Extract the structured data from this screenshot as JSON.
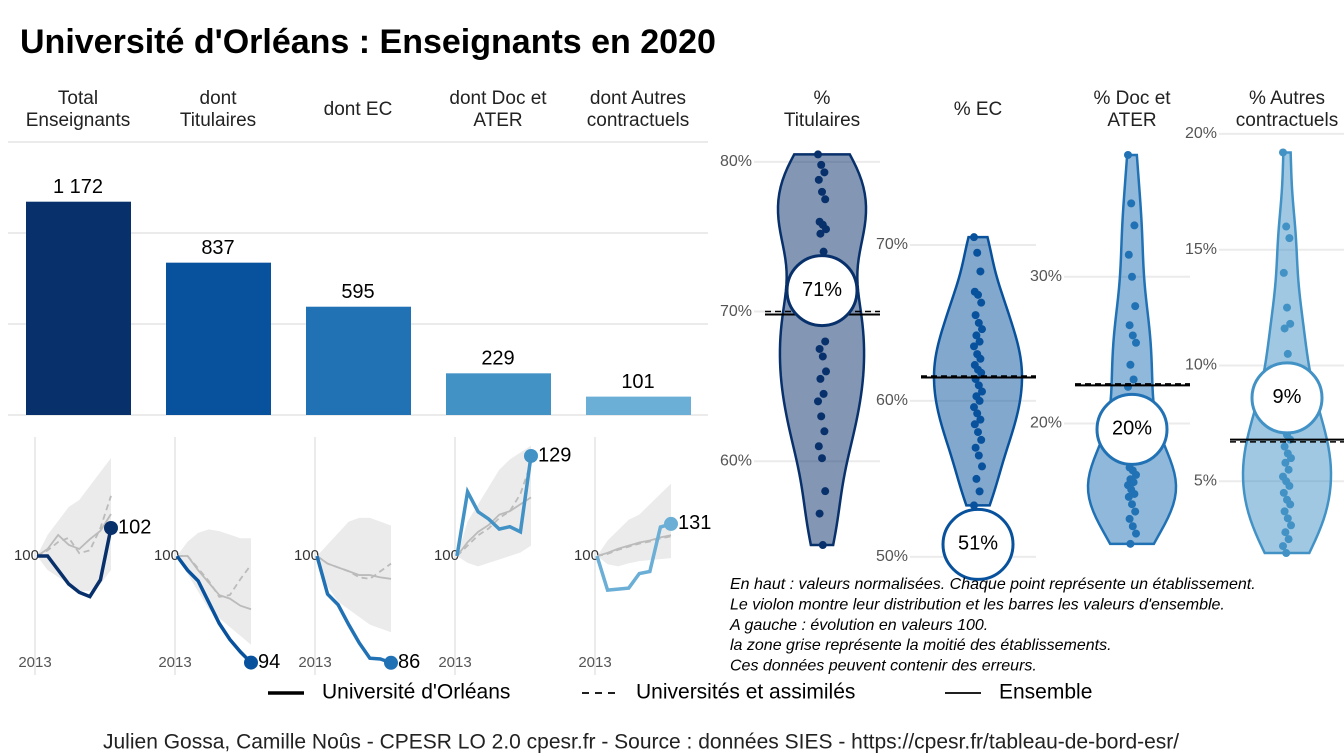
{
  "title": "Université d'Orléans  :  Enseignants en 2020",
  "chart_data": [
    {
      "type": "bar",
      "categories": [
        "Total\nEnseignants",
        "dont\nTitulaires",
        "dont EC",
        "dont Doc et\nATER",
        "dont Autres\ncontractuels"
      ],
      "values": [
        1172,
        837,
        595,
        229,
        101
      ],
      "value_labels": [
        "1 172",
        "837",
        "595",
        "229",
        "101"
      ],
      "colors": [
        "#08306b",
        "#08519c",
        "#2171b5",
        "#4292c6",
        "#6baed6"
      ],
      "ylim": [
        0,
        1500
      ],
      "yticks": [
        0,
        500,
        1000,
        1500
      ],
      "grid": true
    },
    {
      "type": "line",
      "categories": [
        "2013",
        null,
        null,
        null,
        null,
        null,
        null,
        null
      ],
      "ylim": [
        91.5,
        108.5
      ],
      "yticks": [
        100
      ],
      "series": [
        {
          "color": "#08306b",
          "values": [
            100,
            100,
            99,
            98,
            97.4,
            97.1,
            98.3,
            102
          ]
        },
        {
          "color": "#bbbbbb",
          "dash": true,
          "values": [
            100,
            100.4,
            101,
            101.3,
            100.2,
            100.4,
            102,
            104.3
          ]
        },
        {
          "color": "#bbbbbb",
          "values": [
            100,
            100.5,
            101.5,
            100.8,
            100.5,
            101.2,
            101.8,
            103
          ]
        }
      ],
      "band": {
        "color": "#ebebeb",
        "low": [
          100,
          99,
          98.5,
          98,
          97.5,
          97.5,
          98,
          99
        ],
        "high": [
          100,
          101.5,
          102.5,
          103.5,
          104,
          105,
          106,
          107
        ]
      }
    },
    {
      "type": "line",
      "categories": [
        "2013",
        null,
        null,
        null,
        null,
        null,
        null,
        null
      ],
      "ylim": [
        93.3,
        106.7
      ],
      "yticks": [
        100
      ],
      "series": [
        {
          "color": "#08519c",
          "values": [
            100,
            99.2,
            98.6,
            97.4,
            96.2,
            95.3,
            94.6,
            94
          ]
        },
        {
          "color": "#bbbbbb",
          "dash": true,
          "values": [
            100,
            100,
            99.3,
            98.6,
            97.7,
            97.8,
            98.7,
            99.5
          ]
        },
        {
          "color": "#bbbbbb",
          "values": [
            100,
            100,
            99.2,
            98.5,
            97.8,
            97.6,
            97.2,
            97
          ]
        }
      ],
      "band": {
        "color": "#ebebeb",
        "low": [
          100,
          99,
          98,
          97,
          96.5,
          96,
          95.5,
          95
        ],
        "high": [
          100,
          100.8,
          101.3,
          101.5,
          101.4,
          101.2,
          101,
          101
        ]
      }
    },
    {
      "type": "line",
      "categories": [
        "2013",
        null,
        null,
        null,
        null,
        null,
        null,
        null
      ],
      "ylim": [
        84.4,
        115.6
      ],
      "yticks": [
        100
      ],
      "series": [
        {
          "color": "#2171b5",
          "values": [
            100,
            95,
            93.6,
            91,
            88.6,
            86.6,
            86.5,
            86
          ]
        },
        {
          "color": "#bbbbbb",
          "dash": true,
          "values": [
            100,
            99,
            98.5,
            98,
            97.2,
            97,
            98,
            99
          ]
        },
        {
          "color": "#bbbbbb",
          "values": [
            100,
            99,
            98.5,
            98,
            97.5,
            97.5,
            97.2,
            97
          ]
        }
      ],
      "band": {
        "color": "#ebebeb",
        "low": [
          100,
          96,
          94,
          93,
          92,
          91,
          90.5,
          90
        ],
        "high": [
          100,
          101.5,
          103,
          104.5,
          105,
          105,
          104.5,
          104
        ]
      }
    },
    {
      "type": "line",
      "categories": [
        "2013",
        null,
        null,
        null,
        null,
        null,
        null,
        null
      ],
      "ylim": [
        65.5,
        134.5
      ],
      "yticks": [
        100
      ],
      "series": [
        {
          "color": "#4292c6",
          "values": [
            100,
            118.6,
            112.8,
            110.7,
            107.8,
            108.5,
            107,
            129
          ]
        },
        {
          "color": "#bbbbbb",
          "dash": true,
          "values": [
            100,
            103,
            106,
            108,
            111,
            113,
            118,
            127
          ]
        },
        {
          "color": "#bbbbbb",
          "values": [
            100,
            104,
            107,
            109,
            112,
            113,
            115,
            117
          ]
        }
      ],
      "band": {
        "color": "#ebebeb",
        "low": [
          100,
          98,
          97,
          98,
          99,
          100,
          101,
          103
        ],
        "high": [
          100,
          110,
          115,
          120,
          125,
          128,
          130,
          132
        ]
      }
    },
    {
      "type": "line",
      "categories": [
        "2013",
        null,
        null,
        null,
        null,
        null,
        null,
        null
      ],
      "ylim": [
        -15,
        215
      ],
      "yticks": [
        100
      ],
      "series": [
        {
          "color": "#6baed6",
          "values": [
            100,
            67,
            68,
            69,
            83,
            85,
            128,
            131
          ]
        },
        {
          "color": "#bbbbbb",
          "dash": true,
          "values": [
            100,
            102,
            106,
            109,
            112,
            114,
            117,
            119
          ]
        },
        {
          "color": "#bbbbbb",
          "values": [
            100,
            103,
            107,
            110,
            113,
            115,
            118,
            120
          ]
        }
      ],
      "band": {
        "color": "#ebebeb",
        "low": [
          100,
          92,
          90,
          93,
          95,
          96,
          97,
          98
        ],
        "high": [
          100,
          115,
          125,
          135,
          140,
          150,
          160,
          170
        ]
      }
    },
    {
      "type": "violin",
      "title": "%\nTitulaires",
      "color": "#08306b",
      "ylim": [
        53.4,
        82.13
      ],
      "yticks": [
        {
          "value": 60,
          "label": "60%"
        },
        {
          "value": 70,
          "label": "70%"
        },
        {
          "value": 80,
          "label": "80%"
        }
      ],
      "value": 71.4,
      "value_label": "71%",
      "ensemble": 69.8,
      "universities": 70.0,
      "points": [
        80.5,
        79.8,
        79.3,
        78.8,
        78,
        77.5,
        76,
        75.8,
        75.5,
        75.2,
        74,
        72.5,
        71,
        70.3,
        69.8,
        69.6,
        68,
        67.5,
        67,
        66,
        65.5,
        64.5,
        64,
        63,
        62,
        61,
        60.2,
        58,
        56.5,
        54.4
      ]
    },
    {
      "type": "violin",
      "title": "% EC",
      "color": "#08519c",
      "ylim": [
        49.8,
        77.37
      ],
      "yticks": [
        {
          "value": 50,
          "label": "50%"
        },
        {
          "value": 60,
          "label": "60%"
        },
        {
          "value": 70,
          "label": "70%"
        }
      ],
      "value": 50.8,
      "value_label": "51%",
      "ensemble": 61.5,
      "universities": 61.6,
      "points": [
        70.5,
        69.5,
        68.3,
        67,
        66.8,
        66.3,
        65.5,
        65,
        64.6,
        64.2,
        63.8,
        63.5,
        63,
        62.7,
        62.3,
        62,
        61.8,
        61.4,
        61,
        60.6,
        60.3,
        60,
        59.6,
        59.2,
        58.8,
        58.5,
        58,
        57.5,
        57,
        56.5,
        55.8,
        55,
        54.2,
        53.3
      ]
    },
    {
      "type": "violin",
      "title": "% Doc et\nATER",
      "color": "#2171b5",
      "ylim": [
        10.7,
        40
      ],
      "yticks": [
        {
          "value": 20,
          "label": "20%"
        },
        {
          "value": 30,
          "label": "30%"
        }
      ],
      "value": 19.6,
      "value_label": "20%",
      "ensemble": 22.6,
      "universities": 22.7,
      "points": [
        38.3,
        35,
        33.5,
        31.5,
        30,
        28,
        26.7,
        26,
        25.5,
        24,
        23,
        22.5,
        21.5,
        20.5,
        19.5,
        18,
        17.5,
        17,
        16.8,
        16.5,
        16.2,
        16,
        15.8,
        15.5,
        15.2,
        15,
        14.5,
        14,
        13.5,
        13,
        12.5,
        11.8
      ]
    },
    {
      "type": "violin",
      "title": "% Autres\ncontractuels",
      "color": "#4292c6",
      "ylim": [
        1.6,
        20.17
      ],
      "yticks": [
        {
          "value": 5,
          "label": "5%"
        },
        {
          "value": 10,
          "label": "10%"
        },
        {
          "value": 15,
          "label": "15%"
        },
        {
          "value": 20,
          "label": "20%"
        }
      ],
      "value": 8.6,
      "value_label": "9%",
      "ensemble": 6.8,
      "universities": 6.7,
      "points": [
        19.2,
        16,
        15.5,
        14,
        12.5,
        11.8,
        11.6,
        10.5,
        10,
        9.5,
        8.8,
        8.5,
        8,
        7.6,
        7.2,
        7,
        6.8,
        6.5,
        6.2,
        6,
        5.8,
        5.5,
        5.2,
        5,
        4.8,
        4.5,
        4.2,
        4,
        3.7,
        3.4,
        3.1,
        2.8,
        2.5,
        2.2,
        1.9
      ]
    }
  ],
  "legend": [
    {
      "label": "Université d'Orléans",
      "style": "thick"
    },
    {
      "label": "Universités et assimilés",
      "style": "dashed"
    },
    {
      "label": "Ensemble",
      "style": "thin"
    }
  ],
  "notes": [
    "En haut : valeurs normalisées. Chaque point représente un établissement.",
    "Le violon montre leur distribution et les barres les valeurs d'ensemble.",
    "A gauche : évolution en valeurs 100.",
    "la zone grise représente la moitié des établissements.",
    "Ces données peuvent contenir des erreurs."
  ],
  "source": "Julien Gossa, Camille Noûs - CPESR LO 2.0 cpesr.fr - Source : données SIES - https://cpesr.fr/tableau-de-bord-esr/"
}
